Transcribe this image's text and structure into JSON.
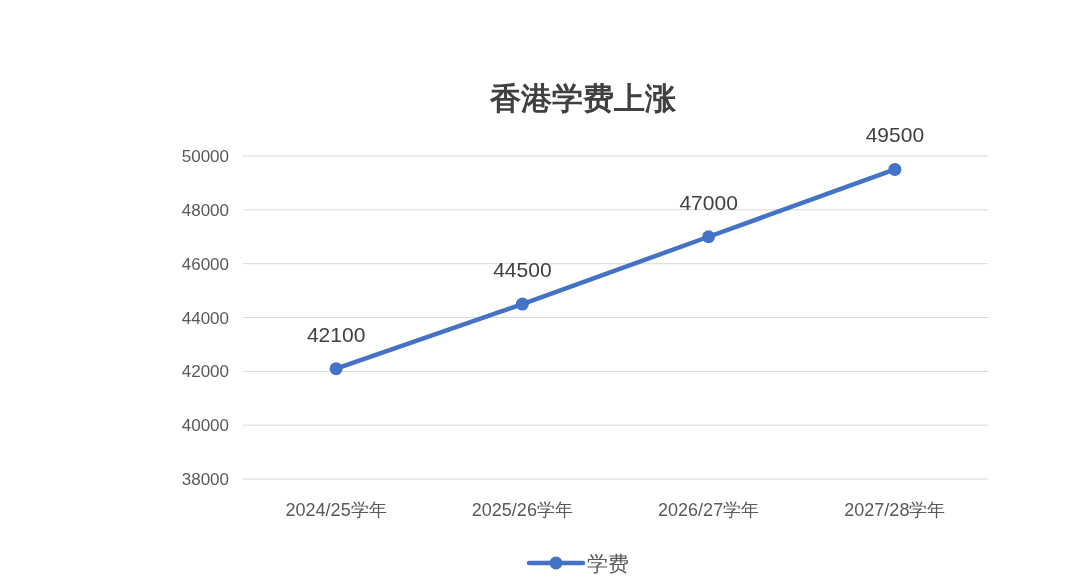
{
  "chart_data": {
    "type": "line",
    "title": "香港学费上涨",
    "categories": [
      "2024/25学年",
      "2025/26学年",
      "2026/27学年",
      "2027/28学年"
    ],
    "series": [
      {
        "name": "学费",
        "color": "#4472c4",
        "values": [
          42100,
          44500,
          47000,
          49500
        ]
      }
    ],
    "ylim": [
      38000,
      50000
    ],
    "yticks": [
      38000,
      40000,
      42000,
      44000,
      46000,
      48000,
      50000
    ],
    "grid": "y",
    "legend": "bottom",
    "marker": "circle",
    "line_style": "solid",
    "data_labels": true
  }
}
